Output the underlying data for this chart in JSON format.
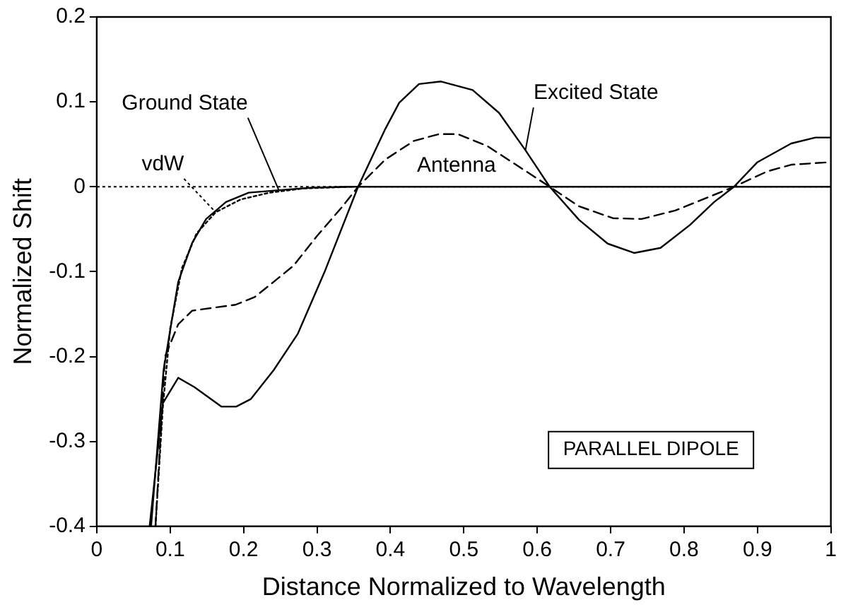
{
  "chart_data": {
    "type": "line",
    "xlabel": "Distance Normalized to Wavelength",
    "ylabel": "Normalized Shift",
    "xlim": [
      0,
      1
    ],
    "xticks": [
      0,
      0.1,
      0.2,
      0.3,
      0.4,
      0.5,
      0.6,
      0.7,
      0.8,
      0.9,
      1
    ],
    "ylim": [
      -0.4,
      0.2
    ],
    "yticks": [
      -0.4,
      -0.3,
      -0.2,
      -0.1,
      0,
      0.1,
      0.2
    ],
    "grid": false,
    "legend": false,
    "marker": "none",
    "ref_lines": [
      {
        "axis": "y",
        "value": 0,
        "line_style": "dotted",
        "color": "#000000"
      }
    ],
    "annotations": [
      "PARALLEL DIPOLE"
    ],
    "series": [
      {
        "name": "Ground State",
        "color": "#000000",
        "line_style": "solid",
        "x": [
          0.074,
          0.091,
          0.111,
          0.13,
          0.149,
          0.176,
          0.207,
          0.248,
          0.294,
          0.345,
          0.5,
          0.7,
          1.0
        ],
        "values": [
          -0.4,
          -0.216,
          -0.112,
          -0.066,
          -0.038,
          -0.018,
          -0.007,
          -0.004,
          -0.001,
          0,
          0,
          0,
          0
        ]
      },
      {
        "name": "vdW",
        "color": "#000000",
        "line_style": "dotted",
        "x": [
          0.08,
          0.09,
          0.1,
          0.116,
          0.136,
          0.162,
          0.196,
          0.235,
          0.281,
          0.347
        ],
        "values": [
          -0.4,
          -0.26,
          -0.167,
          -0.096,
          -0.055,
          -0.03,
          -0.015,
          -0.007,
          -0.002,
          0
        ]
      },
      {
        "name": "Excited State",
        "color": "#000000",
        "line_style": "solid",
        "x": [
          0.072,
          0.09,
          0.111,
          0.133,
          0.17,
          0.19,
          0.21,
          0.241,
          0.274,
          0.31,
          0.356,
          0.393,
          0.412,
          0.439,
          0.469,
          0.512,
          0.548,
          0.584,
          0.617,
          0.657,
          0.696,
          0.732,
          0.768,
          0.808,
          0.841,
          0.868,
          0.9,
          0.946,
          0.979,
          1.0
        ],
        "values": [
          -0.4,
          -0.255,
          -0.225,
          -0.236,
          -0.259,
          -0.259,
          -0.25,
          -0.216,
          -0.173,
          -0.101,
          0,
          0.068,
          0.099,
          0.121,
          0.124,
          0.114,
          0.087,
          0.043,
          0,
          -0.039,
          -0.067,
          -0.078,
          -0.072,
          -0.045,
          -0.018,
          0,
          0.029,
          0.051,
          0.058,
          0.058
        ]
      },
      {
        "name": "Antenna",
        "color": "#000000",
        "line_style": "dashed",
        "x": [
          0.08,
          0.093,
          0.111,
          0.13,
          0.163,
          0.189,
          0.215,
          0.241,
          0.268,
          0.3,
          0.333,
          0.356,
          0.393,
          0.432,
          0.466,
          0.492,
          0.532,
          0.571,
          0.617,
          0.657,
          0.703,
          0.742,
          0.788,
          0.834,
          0.868,
          0.913,
          0.946,
          1.0
        ],
        "values": [
          -0.4,
          -0.2,
          -0.162,
          -0.146,
          -0.142,
          -0.139,
          -0.13,
          -0.112,
          -0.093,
          -0.058,
          -0.025,
          0,
          0.032,
          0.054,
          0.062,
          0.062,
          0.048,
          0.026,
          0,
          -0.023,
          -0.037,
          -0.038,
          -0.028,
          -0.012,
          0,
          0.018,
          0.026,
          0.029
        ]
      }
    ]
  }
}
